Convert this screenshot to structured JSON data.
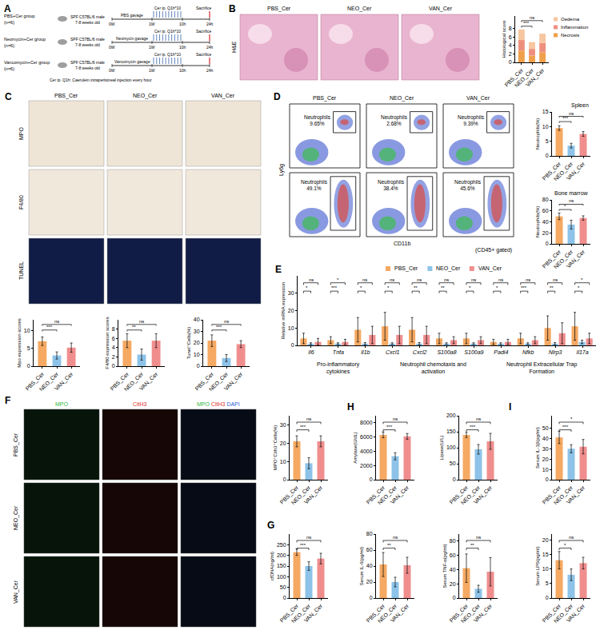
{
  "panel_letters": [
    "A",
    "B",
    "C",
    "D",
    "E",
    "F",
    "G",
    "H",
    "I"
  ],
  "schematic": {
    "groups": [
      {
        "name": "PBS+Cer group",
        "n": "(n=6)",
        "treatment": "PBS gavage"
      },
      {
        "name": "Neomycin+Cer group",
        "n": "(n=6)",
        "treatment": "Neomycin gavage"
      },
      {
        "name": "Vancomycin+Cer group",
        "n": "(n=6)",
        "treatment": "Vancomycin gavage"
      }
    ],
    "mice": "SPF C57BL/6 male 7-8 weeks old",
    "timepoints": [
      "0W",
      "1W",
      "10h",
      "24h"
    ],
    "injection": "Cer ip. Q1h*10",
    "endpoint": "Sacrifice",
    "footnote": "Cer ip. Q1h: Caerulein intraperitoneal injection every hour"
  },
  "images": [
    {
      "row_labels": [
        "H&E"
      ],
      "column_labels": [
        "PBS_Cer",
        "NEO_Cer",
        "VAN_Cer"
      ]
    },
    {
      "row_labels": [
        "MPO",
        "F4/80",
        "TUNEL"
      ],
      "column_labels": [
        "PBS_Cer",
        "NEO_Cer",
        "VAN_Cer"
      ]
    },
    {
      "column_labels": [
        "PBS_Cer",
        "NEO_Cer",
        "VAN_Cer"
      ],
      "gates": [
        {
          "label": "Neutrophils",
          "value_labels": [
            "9.65%",
            "2.68%",
            "9.39%"
          ]
        },
        {
          "label": "Neutrophils",
          "value_labels": [
            "49.1%",
            "38.4%",
            "45.6%"
          ]
        }
      ],
      "x_label": "CD11b",
      "y_label": "Ly6g",
      "note": "(CD45+ gated)"
    },
    {
      "row_labels": [
        "PBS_Cer",
        "NEO_Cer",
        "VAN_Cer"
      ],
      "column_labels": [
        [
          {
            "text": "MPO",
            "color": "#2fb83c"
          }
        ],
        [
          {
            "text": "CitH3",
            "color": "#e0302a"
          }
        ],
        [
          {
            "text": "MPO",
            "color": "#2fb83c"
          },
          {
            "text": "CitH3",
            "color": "#e0302a"
          },
          {
            "text": "DAPI",
            "color": "#2f62d6"
          }
        ]
      ]
    }
  ],
  "chart_data": [
    {
      "type": "bar",
      "stacked": true,
      "ylabel": "Histological score",
      "categories": [
        "PBS_Cer",
        "NEO_Cer",
        "VAN_Cer"
      ],
      "series": [
        {
          "name": "Oedema",
          "color": "#f6c7a0",
          "values": [
            2.5,
            1.6,
            2.2
          ]
        },
        {
          "name": "Inflammation",
          "color": "#ee8f7e",
          "values": [
            2.5,
            1.6,
            2.2
          ]
        },
        {
          "name": "Necrosis",
          "color": "#f0a04b",
          "values": [
            2.8,
            1.6,
            2.4
          ]
        }
      ],
      "ylim": [
        0,
        11
      ],
      "yticks": [
        0,
        2,
        4,
        6,
        8
      ],
      "legend": "right",
      "comparisons": [
        {
          "groups": [
            0,
            1
          ],
          "label": "***"
        },
        {
          "groups": [
            0,
            2
          ],
          "label": "ns"
        }
      ]
    },
    {
      "type": "bar",
      "ylabel": "Mpo expression scores",
      "categories": [
        "PBS_Cer",
        "NEO_Cer",
        "VAN_Cer"
      ],
      "values": [
        7,
        3,
        5.2
      ],
      "errors": [
        1.2,
        1.0,
        1.3
      ],
      "colors": [
        "#f5a962",
        "#8dc3e8",
        "#f08e8e"
      ],
      "ylim": [
        0,
        13
      ],
      "yticks": [
        0,
        5,
        10
      ],
      "comparisons": [
        {
          "groups": [
            0,
            1
          ],
          "label": "***"
        },
        {
          "groups": [
            0,
            2
          ],
          "label": "ns"
        }
      ]
    },
    {
      "type": "bar",
      "ylabel": "F4/80 expression scores",
      "categories": [
        "PBS_Cer",
        "NEO_Cer",
        "VAN_Cer"
      ],
      "values": [
        5.5,
        2.5,
        5.5
      ],
      "errors": [
        1.5,
        1.2,
        1.5
      ],
      "colors": [
        "#f5a962",
        "#8dc3e8",
        "#f08e8e"
      ],
      "ylim": [
        0,
        10
      ],
      "yticks": [
        0,
        2,
        4,
        6,
        8
      ],
      "comparisons": [
        {
          "groups": [
            0,
            1
          ],
          "label": "**"
        },
        {
          "groups": [
            0,
            2
          ],
          "label": "ns"
        }
      ]
    },
    {
      "type": "bar",
      "ylabel": "Tunel⁺Cells(%)",
      "categories": [
        "PBS_Cer",
        "NEO_Cer",
        "VAN_Cer"
      ],
      "values": [
        22,
        7,
        19
      ],
      "errors": [
        5,
        3,
        3
      ],
      "colors": [
        "#f5a962",
        "#8dc3e8",
        "#f08e8e"
      ],
      "ylim": [
        0,
        40
      ],
      "yticks": [
        0,
        10,
        20,
        30,
        40
      ],
      "comparisons": [
        {
          "groups": [
            0,
            1
          ],
          "label": "***"
        },
        {
          "groups": [
            0,
            2
          ],
          "label": "ns"
        }
      ]
    },
    {
      "type": "bar",
      "title": "Spleen",
      "ylabel": "Neutrophils(%)",
      "categories": [
        "PBS_Cer",
        "NEO_Cer",
        "VAN_Cer"
      ],
      "values": [
        9.5,
        3.5,
        7.5
      ],
      "errors": [
        0.8,
        0.8,
        0.8
      ],
      "colors": [
        "#f5a962",
        "#8dc3e8",
        "#f08e8e"
      ],
      "ylim": [
        0,
        15
      ],
      "yticks": [
        0,
        5,
        10,
        15
      ],
      "comparisons": [
        {
          "groups": [
            0,
            1
          ],
          "label": "***"
        },
        {
          "groups": [
            0,
            2
          ],
          "label": "ns"
        }
      ]
    },
    {
      "type": "bar",
      "title": "Bone marrow",
      "ylabel": "Neutrophils(%)",
      "categories": [
        "PBS_Cer",
        "NEO_Cer",
        "VAN_Cer"
      ],
      "values": [
        50,
        35,
        47
      ],
      "errors": [
        6,
        8,
        4
      ],
      "colors": [
        "#f5a962",
        "#8dc3e8",
        "#f08e8e"
      ],
      "ylim": [
        0,
        80
      ],
      "yticks": [
        0,
        20,
        40,
        60,
        80
      ],
      "comparisons": [
        {
          "groups": [
            0,
            1
          ],
          "label": "*"
        },
        {
          "groups": [
            0,
            2
          ],
          "label": "ns"
        }
      ]
    },
    {
      "type": "bar",
      "ylabel": "Relative mRNA expression",
      "categories": [
        "Il6",
        "Tnfa",
        "Il1b",
        "Cxcl1",
        "Cxcl2",
        "S100a8",
        "S100a9",
        "Padi4",
        "Nfkb",
        "Nlrp3",
        "Il17a"
      ],
      "series": [
        {
          "name": "PBS_Cer",
          "color": "#f5a962",
          "values": [
            4,
            3,
            9,
            11,
            9,
            4,
            4,
            2,
            4,
            10,
            11
          ],
          "errors": [
            3,
            2,
            7,
            8,
            7,
            3,
            3,
            1.5,
            3,
            7,
            8
          ]
        },
        {
          "name": "NEO_Cer",
          "color": "#8dc3e8",
          "values": [
            1,
            1,
            1,
            1,
            1,
            1,
            1,
            1,
            1,
            1,
            2
          ],
          "errors": [
            0.5,
            0.5,
            0.6,
            0.5,
            0.6,
            0.5,
            0.5,
            0.5,
            0.5,
            0.6,
            1
          ]
        },
        {
          "name": "VAN_Cer",
          "color": "#f08e8e",
          "values": [
            2,
            2,
            6,
            6,
            6,
            3,
            3,
            2,
            3,
            7,
            4
          ],
          "errors": [
            2,
            1.5,
            5,
            5,
            5,
            2,
            2,
            1.5,
            2,
            6,
            3
          ]
        }
      ],
      "ylim": [
        0,
        40
      ],
      "yticks": [
        0,
        10,
        20,
        30
      ],
      "legend": "top",
      "groups": [
        {
          "label": "Pro-inflammatory cytokines",
          "from": 0,
          "to": 2
        },
        {
          "label": "Neutrophil chemotaxis and activation",
          "from": 3,
          "to": 6
        },
        {
          "label": "Neutrophil Extracellular Trap Formation",
          "from": 7,
          "to": 10
        }
      ],
      "comparisons": [
        {
          "category": 0,
          "groups": [
            0,
            1
          ],
          "label": "*"
        },
        {
          "category": 0,
          "groups": [
            0,
            2
          ],
          "label": "ns"
        },
        {
          "category": 1,
          "groups": [
            0,
            1
          ],
          "label": "***"
        },
        {
          "category": 1,
          "groups": [
            0,
            2
          ],
          "label": "*"
        },
        {
          "category": 2,
          "groups": [
            0,
            1
          ],
          "label": "*"
        },
        {
          "category": 2,
          "groups": [
            0,
            2
          ],
          "label": "ns"
        },
        {
          "category": 3,
          "groups": [
            0,
            1
          ],
          "label": "*"
        },
        {
          "category": 3,
          "groups": [
            0,
            2
          ],
          "label": "ns"
        },
        {
          "category": 4,
          "groups": [
            0,
            1
          ],
          "label": "**"
        },
        {
          "category": 4,
          "groups": [
            0,
            2
          ],
          "label": "ns"
        },
        {
          "category": 5,
          "groups": [
            0,
            1
          ],
          "label": "**"
        },
        {
          "category": 5,
          "groups": [
            0,
            2
          ],
          "label": "ns"
        },
        {
          "category": 6,
          "groups": [
            0,
            1
          ],
          "label": "*"
        },
        {
          "category": 6,
          "groups": [
            0,
            2
          ],
          "label": "ns"
        },
        {
          "category": 7,
          "groups": [
            0,
            1
          ],
          "label": "*"
        },
        {
          "category": 7,
          "groups": [
            0,
            2
          ],
          "label": "ns"
        },
        {
          "category": 8,
          "groups": [
            0,
            1
          ],
          "label": "***"
        },
        {
          "category": 8,
          "groups": [
            0,
            2
          ],
          "label": "ns"
        },
        {
          "category": 9,
          "groups": [
            0,
            1
          ],
          "label": "**"
        },
        {
          "category": 9,
          "groups": [
            0,
            2
          ],
          "label": "ns"
        },
        {
          "category": 10,
          "groups": [
            0,
            1
          ],
          "label": "*"
        },
        {
          "category": 10,
          "groups": [
            0,
            2
          ],
          "label": "*"
        }
      ]
    },
    {
      "type": "bar",
      "ylabel": "MPO⁺Cith3⁺Cells(%)",
      "categories": [
        "PBS_Cer",
        "NEO_Cer",
        "VAN_Cer"
      ],
      "values": [
        21,
        9,
        21
      ],
      "errors": [
        3,
        3,
        3
      ],
      "colors": [
        "#f5a962",
        "#8dc3e8",
        "#f08e8e"
      ],
      "ylim": [
        0,
        35
      ],
      "yticks": [
        0,
        10,
        20,
        30
      ],
      "comparisons": [
        {
          "groups": [
            0,
            1
          ],
          "label": "***"
        },
        {
          "groups": [
            0,
            2
          ],
          "label": "ns"
        }
      ]
    },
    {
      "type": "bar",
      "ylabel": "cfDNA(ng/ml)",
      "categories": [
        "PBS_Cer",
        "NEO_Cer",
        "VAN_Cer"
      ],
      "values": [
        215,
        150,
        185
      ],
      "errors": [
        15,
        20,
        25
      ],
      "colors": [
        "#f5a962",
        "#8dc3e8",
        "#f08e8e"
      ],
      "ylim": [
        0,
        300
      ],
      "yticks": [
        0,
        50,
        100,
        150,
        200,
        250
      ],
      "comparisons": [
        {
          "groups": [
            0,
            1
          ],
          "label": "***"
        },
        {
          "groups": [
            0,
            2
          ],
          "label": "ns"
        }
      ]
    },
    {
      "type": "bar",
      "ylabel": "Amylase(U/dL)",
      "categories": [
        "PBS_Cer",
        "NEO_Cer",
        "VAN_Cer"
      ],
      "values": [
        6300,
        3300,
        6100
      ],
      "errors": [
        400,
        500,
        400
      ],
      "colors": [
        "#f5a962",
        "#8dc3e8",
        "#f08e8e"
      ],
      "ylim": [
        0,
        9000
      ],
      "yticks": [
        0,
        2000,
        4000,
        6000,
        8000
      ],
      "comparisons": [
        {
          "groups": [
            0,
            1
          ],
          "label": "***"
        },
        {
          "groups": [
            0,
            2
          ],
          "label": "ns"
        }
      ]
    },
    {
      "type": "bar",
      "ylabel": "Lipase(U/L)",
      "categories": [
        "PBS_Cer",
        "NEO_Cer",
        "VAN_Cer"
      ],
      "values": [
        140,
        95,
        120
      ],
      "errors": [
        8,
        15,
        25
      ],
      "colors": [
        "#f5a962",
        "#8dc3e8",
        "#f08e8e"
      ],
      "ylim": [
        0,
        200
      ],
      "yticks": [
        0,
        50,
        100,
        150,
        200
      ],
      "comparisons": [
        {
          "groups": [
            0,
            1
          ],
          "label": "***"
        },
        {
          "groups": [
            0,
            2
          ],
          "label": "ns"
        }
      ]
    },
    {
      "type": "bar",
      "ylabel": "Serum IL-1β(pg/ml)",
      "categories": [
        "PBS_Cer",
        "NEO_Cer",
        "VAN_Cer"
      ],
      "values": [
        41,
        30,
        32
      ],
      "errors": [
        6,
        4,
        7
      ],
      "colors": [
        "#f5a962",
        "#8dc3e8",
        "#f08e8e"
      ],
      "ylim": [
        0,
        62
      ],
      "yticks": [
        0,
        10,
        20,
        30,
        40,
        50
      ],
      "comparisons": [
        {
          "groups": [
            0,
            1
          ],
          "label": "***"
        },
        {
          "groups": [
            0,
            2
          ],
          "label": "*"
        }
      ]
    },
    {
      "type": "bar",
      "ylabel": "Serum IL-6(pg/ml)",
      "categories": [
        "PBS_Cer",
        "NEO_Cer",
        "VAN_Cer"
      ],
      "values": [
        42,
        20,
        41
      ],
      "errors": [
        15,
        6,
        10
      ],
      "colors": [
        "#f5a962",
        "#8dc3e8",
        "#f08e8e"
      ],
      "ylim": [
        0,
        80
      ],
      "yticks": [
        0,
        20,
        40,
        60,
        80
      ],
      "comparisons": [
        {
          "groups": [
            0,
            1
          ],
          "label": "**"
        },
        {
          "groups": [
            0,
            2
          ],
          "label": "ns"
        }
      ]
    },
    {
      "type": "bar",
      "ylabel": "Serum TNF-α(pg/ml)",
      "categories": [
        "PBS_Cer",
        "NEO_Cer",
        "VAN_Cer"
      ],
      "values": [
        42,
        13,
        37
      ],
      "errors": [
        20,
        5,
        20
      ],
      "colors": [
        "#f5a962",
        "#8dc3e8",
        "#f08e8e"
      ],
      "ylim": [
        0,
        90
      ],
      "yticks": [
        0,
        20,
        40,
        60,
        80
      ],
      "comparisons": [
        {
          "groups": [
            0,
            1
          ],
          "label": "**"
        },
        {
          "groups": [
            0,
            2
          ],
          "label": "ns"
        }
      ]
    },
    {
      "type": "bar",
      "ylabel": "Serum LPS(pg/ml)",
      "categories": [
        "PBS_Cer",
        "NEO_Cer",
        "VAN_Cer"
      ],
      "values": [
        13,
        8,
        12
      ],
      "errors": [
        3,
        2,
        2
      ],
      "colors": [
        "#f5a962",
        "#8dc3e8",
        "#f08e8e"
      ],
      "ylim": [
        0,
        22
      ],
      "yticks": [
        0,
        5,
        10,
        15,
        20
      ],
      "comparisons": [
        {
          "groups": [
            0,
            1
          ],
          "label": "*"
        },
        {
          "groups": [
            0,
            2
          ],
          "label": "ns"
        }
      ]
    }
  ]
}
